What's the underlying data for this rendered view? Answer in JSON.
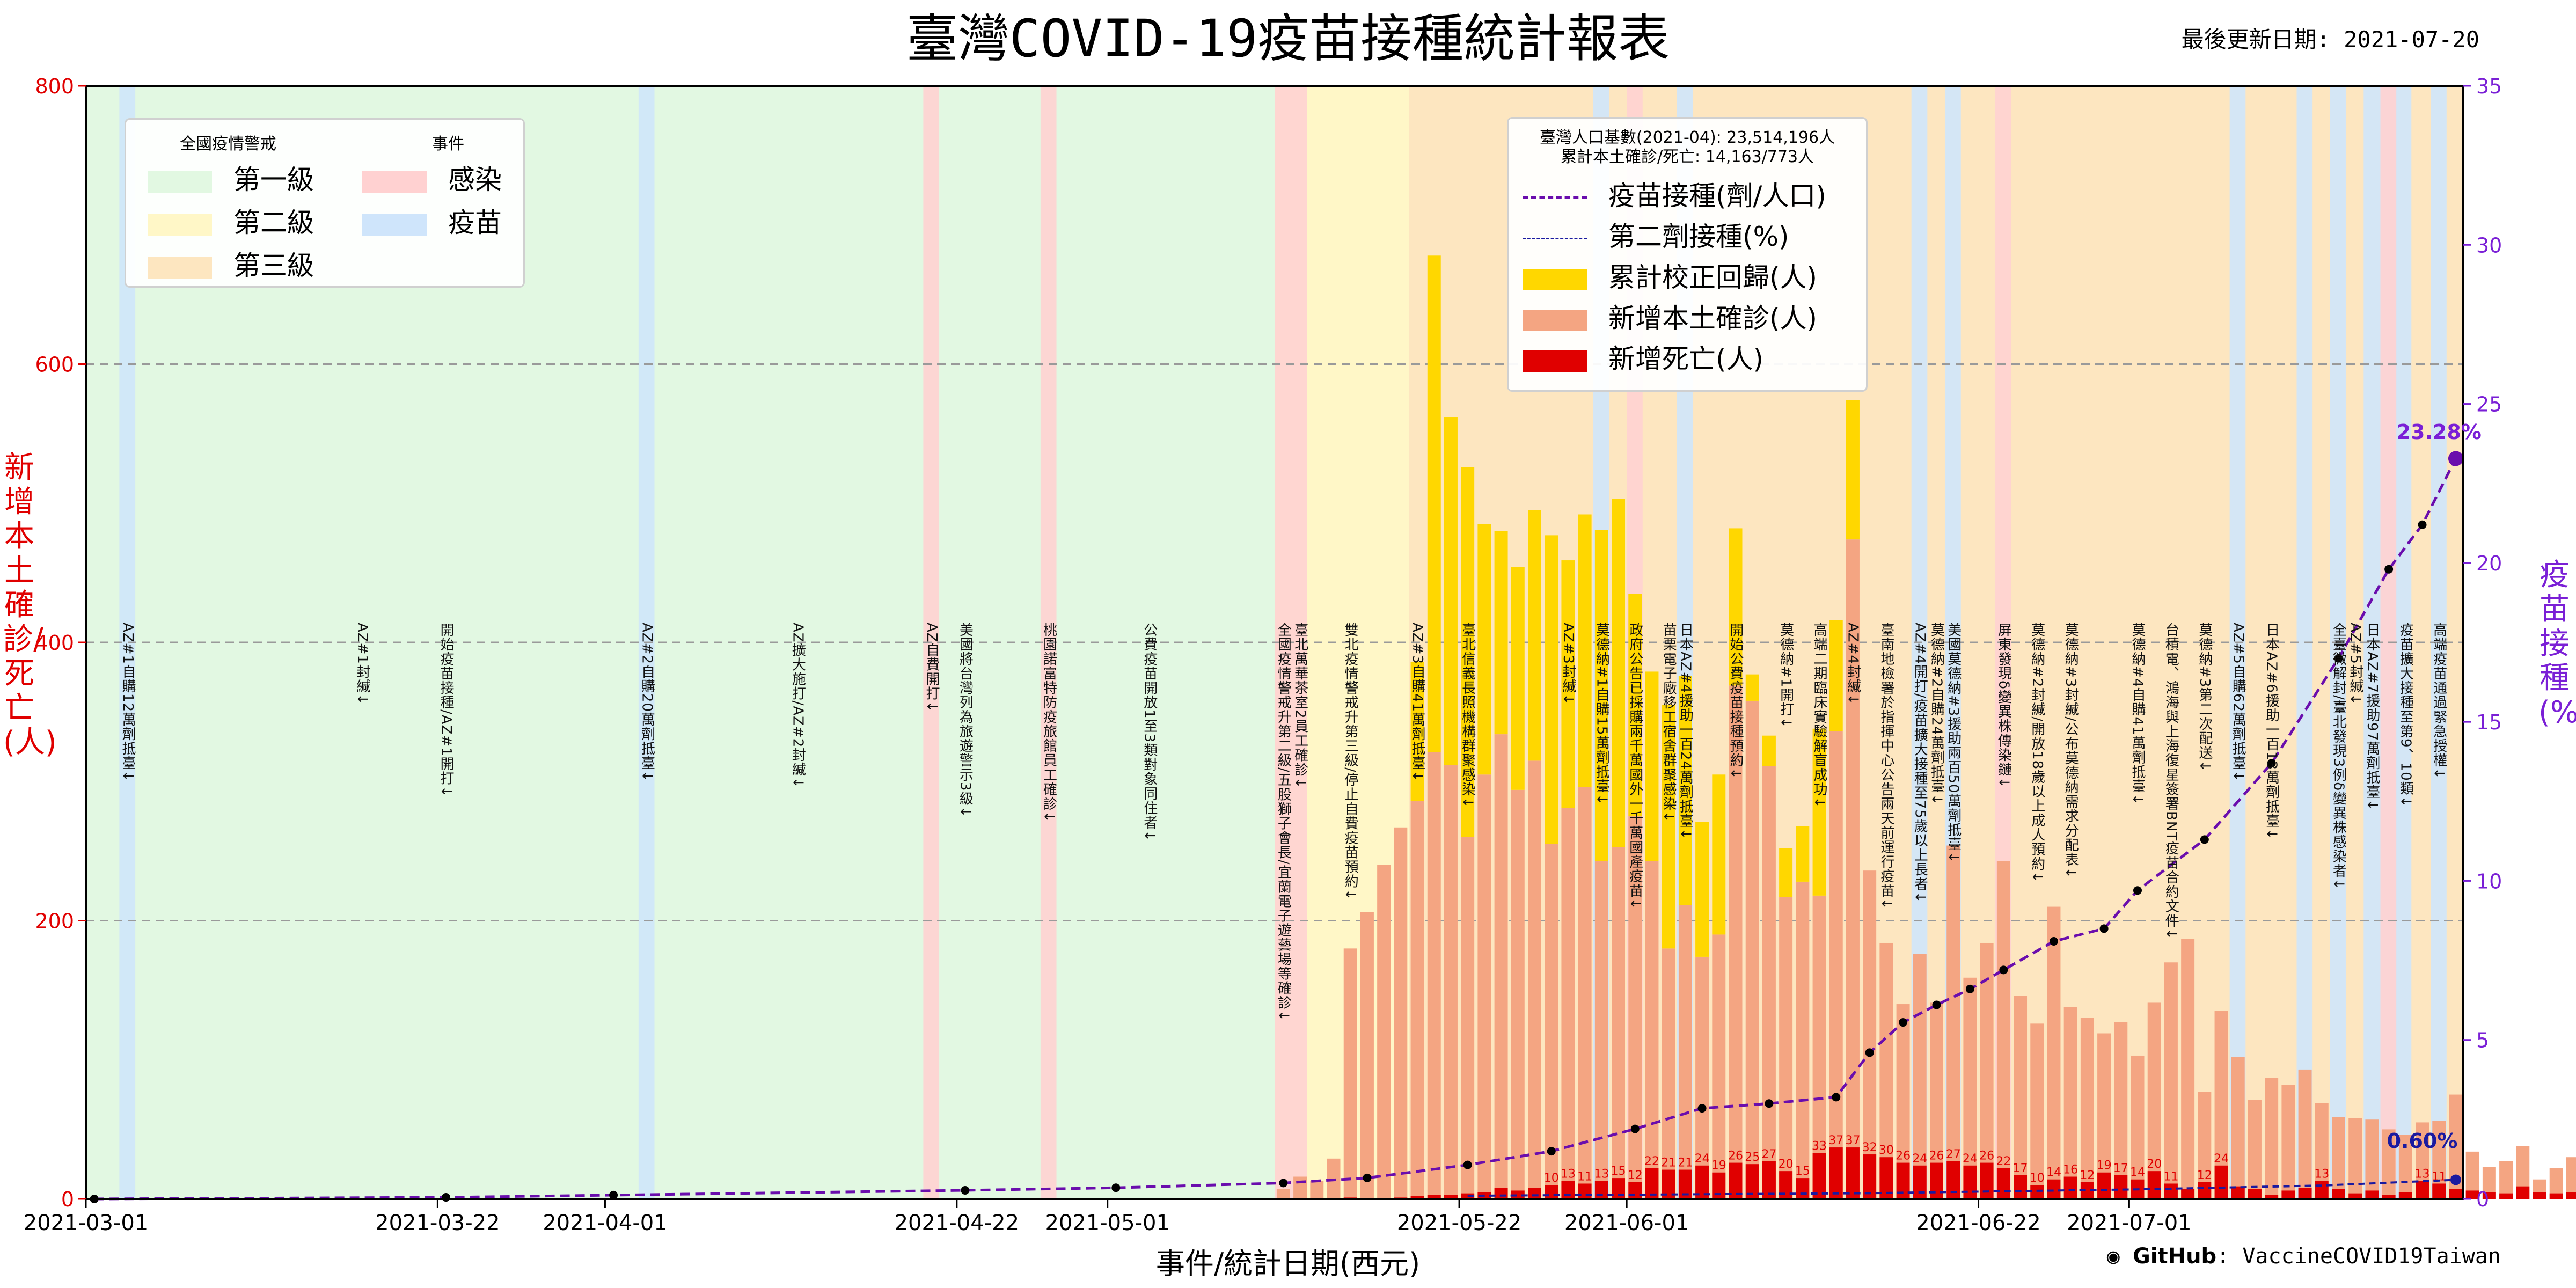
{
  "title": "臺灣COVID-19疫苗接種統計報表",
  "updated": "最後更新日期: 2021-07-20",
  "xlabel": "事件/統計日期(西元)",
  "ylabel_left": "新增本土確診/死亡(人)",
  "ylabel_right": "疫苗接種(%)",
  "footer": {
    "brand": "GitHub",
    "repo": ": VaccineCOVID19Taiwan"
  },
  "legend_alert": {
    "header_left": "全國疫情警戒",
    "header_right": "事件",
    "items": [
      {
        "label": "第一級",
        "color": "#e2f8e2"
      },
      {
        "label": "第二級",
        "color": "#fff7c7"
      },
      {
        "label": "第三級",
        "color": "#fde6c0"
      },
      {
        "label": "感染",
        "color": "#ffd1d1"
      },
      {
        "label": "疫苗",
        "color": "#cfe5fb"
      }
    ]
  },
  "legend_main": {
    "info1": "臺灣人口基數(2021-04): 23,514,196人",
    "info2": "累計本土確診/死亡: 14,163/773人",
    "items": [
      {
        "label": "疫苗接種(劑/人口)",
        "color": "#6a0dad",
        "style": "dash-line"
      },
      {
        "label": "第二劑接種(%)",
        "color": "#1a1aa0",
        "style": "dash-line-thin"
      },
      {
        "label": "累計校正回歸(人)",
        "color": "#ffd700",
        "style": "box"
      },
      {
        "label": "新增本土確診(人)",
        "color": "#f4a582",
        "style": "box"
      },
      {
        "label": "新增死亡(人)",
        "color": "#e00000",
        "style": "box"
      }
    ]
  },
  "chart_data": {
    "type": "bar",
    "x_start": "2021-03-01",
    "x_end": "2021-07-20",
    "xticks": [
      "2021-03-01",
      "2021-03-22",
      "2021-04-01",
      "2021-04-22",
      "2021-05-01",
      "2021-05-22",
      "2021-06-01",
      "2021-06-22",
      "2021-07-01"
    ],
    "ylim_left": [
      0,
      800
    ],
    "yticks_left": [
      0,
      200,
      400,
      600,
      800
    ],
    "ylim_right": [
      0,
      35
    ],
    "yticks_right": [
      0,
      5,
      10,
      15,
      20,
      25,
      30,
      35
    ],
    "grid": "dashed at 200, 400, 600",
    "alert_periods": [
      {
        "level": "第一級",
        "start": "2021-03-01",
        "end": "2021-05-11",
        "color": "#e2f8e2"
      },
      {
        "level": "第二級",
        "start": "2021-05-11",
        "end": "2021-05-19",
        "color": "#fff7c7"
      },
      {
        "level": "第三級",
        "start": "2021-05-19",
        "end": "2021-07-20",
        "color": "#fde6c0"
      }
    ],
    "event_bands": [
      {
        "type": "疫苗",
        "date": "2021-03-03"
      },
      {
        "type": "疫苗",
        "date": "2021-04-03"
      },
      {
        "type": "感染",
        "date": "2021-04-20"
      },
      {
        "type": "感染",
        "date": "2021-04-27"
      },
      {
        "type": "感染",
        "date": "2021-05-11",
        "days": 2
      },
      {
        "type": "疫苗",
        "date": "2021-05-30"
      },
      {
        "type": "感染",
        "date": "2021-06-01"
      },
      {
        "type": "疫苗",
        "date": "2021-06-04"
      },
      {
        "type": "疫苗",
        "date": "2021-06-18"
      },
      {
        "type": "疫苗",
        "date": "2021-06-20"
      },
      {
        "type": "感染",
        "date": "2021-06-23"
      },
      {
        "type": "疫苗",
        "date": "2021-07-07"
      },
      {
        "type": "疫苗",
        "date": "2021-07-11"
      },
      {
        "type": "疫苗",
        "date": "2021-07-13"
      },
      {
        "type": "疫苗",
        "date": "2021-07-15",
        "days": 3
      },
      {
        "type": "感染",
        "date": "2021-07-16"
      },
      {
        "type": "疫苗",
        "date": "2021-07-19"
      }
    ],
    "series": [
      {
        "name": "新增本土確診(人)",
        "color": "#f4a582",
        "start": "2021-05-11",
        "values": [
          7,
          16,
          13,
          29,
          180,
          206,
          240,
          267,
          286,
          321,
          312,
          260,
          305,
          334,
          294,
          315,
          255,
          281,
          296,
          243,
          253,
          275,
          243,
          180,
          211,
          174,
          190,
          369,
          358,
          311,
          217,
          228,
          218,
          336,
          474,
          236,
          184,
          140,
          176,
          141,
          254,
          159,
          184,
          243,
          146,
          126,
          210,
          138,
          130,
          119,
          127,
          103,
          141,
          170,
          187,
          77,
          135,
          102,
          71,
          87,
          82,
          93,
          69,
          59,
          58,
          57,
          50,
          46,
          55,
          56,
          75,
          34,
          23,
          27,
          38,
          14,
          22,
          30,
          29,
          26,
          18,
          20,
          13,
          16,
          13,
          19,
          12,
          13
        ]
      },
      {
        "name": "累計校正回歸(人)",
        "color": "#ffd700",
        "start": "2021-05-16",
        "values": [
          0,
          0,
          0,
          100,
          357,
          250,
          266,
          180,
          146,
          160,
          180,
          222,
          178,
          196,
          238,
          250,
          160,
          136,
          175,
          165,
          97,
          115,
          113,
          19,
          22,
          35,
          40,
          120,
          80,
          100,
          0,
          0
        ]
      },
      {
        "name": "新增死亡(人)",
        "color": "#e00000",
        "start": "2021-05-14",
        "values": [
          0,
          1,
          0,
          0,
          1,
          2,
          3,
          3,
          4,
          5,
          8,
          6,
          8,
          10,
          13,
          11,
          13,
          15,
          12,
          22,
          21,
          21,
          24,
          19,
          26,
          25,
          27,
          20,
          15,
          33,
          37,
          37,
          32,
          30,
          26,
          24,
          26,
          27,
          24,
          26,
          22,
          17,
          10,
          14,
          16,
          12,
          19,
          17,
          14,
          20,
          11,
          7,
          12,
          24,
          9,
          7,
          3,
          6,
          8,
          13,
          7,
          4,
          6,
          3,
          5,
          13,
          11,
          7,
          6,
          5,
          4,
          9,
          5,
          4,
          5,
          6,
          8,
          3,
          2,
          4,
          7,
          2,
          3,
          1,
          3,
          2,
          2,
          1,
          0,
          1,
          2,
          1,
          2
        ]
      },
      {
        "name": "疫苗接種(劑/人口)",
        "color": "#6a0dad",
        "points": [
          [
            "2021-03-01",
            0.0
          ],
          [
            "2021-03-22",
            0.05
          ],
          [
            "2021-04-01",
            0.12
          ],
          [
            "2021-04-22",
            0.27
          ],
          [
            "2021-05-01",
            0.35
          ],
          [
            "2021-05-11",
            0.5
          ],
          [
            "2021-05-16",
            0.66
          ],
          [
            "2021-05-22",
            1.07
          ],
          [
            "2021-05-27",
            1.5
          ],
          [
            "2021-06-01",
            2.2
          ],
          [
            "2021-06-05",
            2.85
          ],
          [
            "2021-06-09",
            3.0
          ],
          [
            "2021-06-13",
            3.2
          ],
          [
            "2021-06-15",
            4.6
          ],
          [
            "2021-06-17",
            5.55
          ],
          [
            "2021-06-19",
            6.1
          ],
          [
            "2021-06-21",
            6.6
          ],
          [
            "2021-06-23",
            7.2
          ],
          [
            "2021-06-26",
            8.1
          ],
          [
            "2021-06-29",
            8.5
          ],
          [
            "2021-07-01",
            9.7
          ],
          [
            "2021-07-05",
            11.3
          ],
          [
            "2021-07-09",
            13.7
          ],
          [
            "2021-07-13",
            17.0
          ],
          [
            "2021-07-16",
            19.8
          ],
          [
            "2021-07-18",
            21.2
          ],
          [
            "2021-07-20",
            23.28
          ]
        ]
      },
      {
        "name": "第二劑接種(%)",
        "color": "#1a1aa0",
        "points": [
          [
            "2021-05-22",
            0.1
          ],
          [
            "2021-06-15",
            0.18
          ],
          [
            "2021-07-01",
            0.3
          ],
          [
            "2021-07-12",
            0.42
          ],
          [
            "2021-07-20",
            0.6
          ]
        ]
      }
    ],
    "data_labels": [
      {
        "text": "23.28%",
        "date": "2021-07-19",
        "value_right": 23.9
      },
      {
        "text": "0.60%",
        "date": "2021-07-18",
        "value_right": 1.6
      }
    ],
    "annotations": [
      {
        "date": "2021-03-03",
        "text": "AZ#1自購12萬劑抵臺↓"
      },
      {
        "date": "2021-03-17",
        "text": "AZ#1封緘↓"
      },
      {
        "date": "2021-03-22",
        "text": "開始疫苗接種/AZ#1開打↓"
      },
      {
        "date": "2021-04-03",
        "text": "AZ#2自購20萬劑抵臺↓"
      },
      {
        "date": "2021-04-12",
        "text": "AZ擴大施打/AZ#2封緘↓"
      },
      {
        "date": "2021-04-20",
        "text": "AZ自費開打↓"
      },
      {
        "date": "2021-04-22",
        "text": "美國將台灣列為旅遊警示3級↓"
      },
      {
        "date": "2021-04-27",
        "text": "桃園諾富特防疫旅館員工確診↓"
      },
      {
        "date": "2021-05-03",
        "text": "公費疫苗開放1至3類對象同住者↓"
      },
      {
        "date": "2021-05-11",
        "text": "全國疫情警戒升第二級/五股獅子會長/宜蘭電子遊藝場等確診↓"
      },
      {
        "date": "2021-05-12",
        "text": "臺北萬華茶室2員工確診↓"
      },
      {
        "date": "2021-05-15",
        "text": "雙北疫情警戒升第三級/停止自費疫苗預約↓"
      },
      {
        "date": "2021-05-19",
        "text": "AZ#3自購41萬劑抵臺↓"
      },
      {
        "date": "2021-05-22",
        "text": "臺北信義長照機構群聚感染↓"
      },
      {
        "date": "2021-05-28",
        "text": "AZ#3封緘↓"
      },
      {
        "date": "2021-05-30",
        "text": "莫德納#1自購15萬劑抵臺↓"
      },
      {
        "date": "2021-06-01",
        "text": "政府公告已採購兩千萬國外一千萬國產疫苗↓"
      },
      {
        "date": "2021-06-03",
        "text": "苗栗電子廠移工宿舍群聚感染↓"
      },
      {
        "date": "2021-06-04",
        "text": "日本AZ#4援助一百24萬劑抵臺↓"
      },
      {
        "date": "2021-06-07",
        "text": "開始公費疫苗接種預約↓"
      },
      {
        "date": "2021-06-10",
        "text": "莫德納#1開打↓"
      },
      {
        "date": "2021-06-12",
        "text": "高端二期臨床實驗解盲成功↓"
      },
      {
        "date": "2021-06-14",
        "text": "AZ#4封緘↓"
      },
      {
        "date": "2021-06-16",
        "text": "臺南地檢署於指揮中心公告兩天前運行疫苗↓"
      },
      {
        "date": "2021-06-18",
        "text": "AZ#4開打/疫苗擴大接種至75歲以上長者↓"
      },
      {
        "date": "2021-06-19",
        "text": "莫德納#2自購24萬劑抵臺↓"
      },
      {
        "date": "2021-06-20",
        "text": "美國莫德納#3援助兩百50萬劑抵臺↓"
      },
      {
        "date": "2021-06-23",
        "text": "屏東發現δ變異株傳染鏈↓"
      },
      {
        "date": "2021-06-25",
        "text": "莫德納#2封緘/開放18歲以上成人預約↓"
      },
      {
        "date": "2021-06-27",
        "text": "莫德納#3封緘/公布莫德納需求分配表↓"
      },
      {
        "date": "2021-07-01",
        "text": "莫德納#4自購41萬劑抵臺↓"
      },
      {
        "date": "2021-07-03",
        "text": "台積電、鴻海與上海復星簽署BNT疫苗合約文件↓"
      },
      {
        "date": "2021-07-05",
        "text": "莫德納#3第二次配送↓"
      },
      {
        "date": "2021-07-07",
        "text": "AZ#5自購62萬劑抵臺↓"
      },
      {
        "date": "2021-07-09",
        "text": "日本AZ#6援助一百13萬劑抵臺↓"
      },
      {
        "date": "2021-07-13",
        "text": "全臺微解封/臺北發現3例δ變異株感染者↓"
      },
      {
        "date": "2021-07-14",
        "text": "AZ#5封緘↓"
      },
      {
        "date": "2021-07-15",
        "text": "日本AZ#7援助97萬劑抵臺↓"
      },
      {
        "date": "2021-07-17",
        "text": "疫苗擴大接種至第9、10類↓"
      },
      {
        "date": "2021-07-19",
        "text": "高端疫苗通過緊急授權↓"
      }
    ]
  }
}
